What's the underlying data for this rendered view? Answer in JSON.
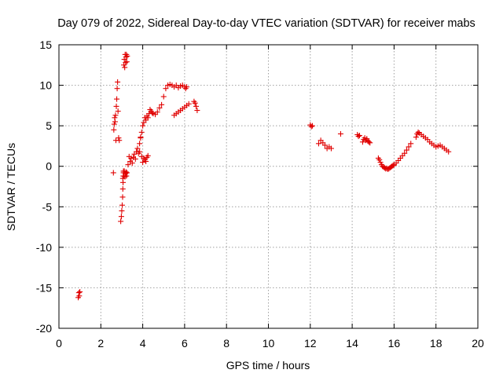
{
  "chart_data": {
    "type": "scatter",
    "title": "Day 079 of 2022, Sidereal Day-to-day VTEC variation (SDTVAR) for receiver mabs",
    "xlabel": "GPS time / hours",
    "ylabel": "SDTVAR / TECUs",
    "xlim": [
      0,
      20
    ],
    "ylim": [
      -20,
      15
    ],
    "x_ticks": [
      0,
      2,
      4,
      6,
      8,
      10,
      12,
      14,
      16,
      18,
      20
    ],
    "y_ticks": [
      -20,
      -15,
      -10,
      -5,
      0,
      5,
      10,
      15
    ],
    "grid": true,
    "marker": "+",
    "marker_color": "#e00000",
    "series": [
      {
        "name": "SDTVAR",
        "x": [
          0.92,
          0.95,
          0.97,
          1.0,
          2.6,
          2.62,
          2.64,
          2.66,
          2.68,
          2.7,
          2.72,
          2.74,
          2.76,
          2.78,
          2.8,
          2.82,
          2.85,
          2.88,
          2.95,
          2.98,
          3.0,
          3.02,
          3.04,
          3.05,
          3.06,
          3.07,
          3.08,
          3.1,
          3.12,
          3.14,
          3.16,
          3.18,
          3.2,
          3.22,
          3.24,
          3.26,
          3.05,
          3.08,
          3.1,
          3.12,
          3.15,
          3.18,
          3.2,
          3.22,
          3.25,
          3.3,
          3.35,
          3.4,
          3.45,
          3.5,
          3.55,
          3.6,
          3.65,
          3.7,
          3.75,
          3.8,
          3.85,
          3.9,
          3.95,
          4.0,
          4.05,
          4.1,
          4.15,
          4.2,
          4.25,
          3.85,
          3.9,
          3.95,
          4.0,
          4.05,
          4.1,
          4.15,
          4.2,
          4.25,
          4.3,
          4.35,
          4.4,
          4.45,
          4.5,
          4.6,
          4.7,
          4.8,
          4.9,
          5.0,
          5.1,
          5.2,
          5.3,
          5.4,
          5.5,
          5.6,
          5.7,
          5.8,
          5.9,
          6.0,
          6.05,
          6.1,
          5.5,
          5.6,
          5.7,
          5.8,
          5.9,
          6.0,
          6.1,
          6.2,
          6.45,
          6.5,
          6.55,
          6.6,
          12.0,
          12.05,
          12.1,
          12.4,
          12.5,
          12.6,
          12.7,
          12.8,
          12.9,
          13.0,
          13.45,
          14.25,
          14.3,
          14.35,
          14.5,
          14.55,
          14.6,
          14.65,
          14.7,
          14.75,
          14.8,
          14.85,
          15.25,
          15.3,
          15.35,
          15.4,
          15.45,
          15.5,
          15.55,
          15.6,
          15.65,
          15.7,
          15.75,
          15.8,
          15.85,
          15.9,
          15.95,
          16.0,
          16.1,
          16.2,
          16.3,
          16.4,
          16.5,
          16.6,
          16.7,
          16.8,
          17.05,
          17.1,
          17.15,
          17.2,
          17.3,
          17.4,
          17.5,
          17.6,
          17.7,
          17.8,
          17.9,
          18.0,
          18.1,
          18.2,
          18.3,
          18.4,
          18.5,
          18.6
        ],
        "y": [
          -16.2,
          -15.6,
          -16.0,
          -15.5,
          -0.8,
          4.5,
          5.2,
          6.0,
          5.5,
          6.3,
          3.2,
          7.4,
          8.3,
          9.6,
          10.4,
          6.8,
          3.5,
          3.2,
          -6.8,
          -6.2,
          -5.5,
          -4.8,
          -3.8,
          -2.8,
          -2.0,
          -1.2,
          -0.6,
          12.5,
          13.2,
          12.2,
          13.8,
          12.8,
          13.5,
          13.8,
          12.9,
          13.6,
          -1.5,
          -0.8,
          -1.2,
          -0.6,
          -1.3,
          -0.9,
          -0.7,
          -1.2,
          -0.8,
          0.2,
          1.2,
          0.6,
          1.0,
          0.4,
          1.1,
          1.5,
          0.9,
          1.8,
          2.2,
          1.6,
          2.8,
          3.5,
          1.2,
          0.5,
          1.0,
          0.8,
          0.6,
          1.1,
          1.3,
          1.8,
          3.6,
          4.2,
          5.0,
          5.4,
          6.0,
          5.7,
          6.2,
          6.0,
          6.5,
          7.0,
          6.8,
          6.6,
          6.5,
          6.4,
          6.7,
          7.2,
          7.6,
          8.6,
          9.6,
          10.0,
          10.1,
          10.0,
          9.8,
          10.0,
          9.7,
          9.9,
          10.0,
          9.8,
          9.6,
          9.8,
          6.3,
          6.5,
          6.7,
          6.9,
          7.1,
          7.3,
          7.5,
          7.7,
          8.0,
          7.8,
          7.4,
          6.9,
          5.1,
          4.9,
          5.0,
          2.8,
          3.2,
          2.9,
          2.6,
          2.2,
          2.4,
          2.2,
          4.0,
          3.9,
          3.7,
          3.8,
          3.0,
          3.3,
          3.5,
          3.2,
          3.4,
          3.1,
          3.0,
          2.9,
          1.0,
          0.8,
          0.5,
          0.2,
          0.0,
          -0.1,
          -0.2,
          -0.3,
          -0.25,
          -0.35,
          -0.3,
          -0.2,
          -0.1,
          0.0,
          0.1,
          0.2,
          0.4,
          0.7,
          1.0,
          1.3,
          1.6,
          2.0,
          2.4,
          2.8,
          3.6,
          4.0,
          4.2,
          4.1,
          3.9,
          3.7,
          3.5,
          3.3,
          3.0,
          2.8,
          2.6,
          2.4,
          2.5,
          2.6,
          2.4,
          2.2,
          2.0,
          1.8
        ]
      }
    ]
  }
}
